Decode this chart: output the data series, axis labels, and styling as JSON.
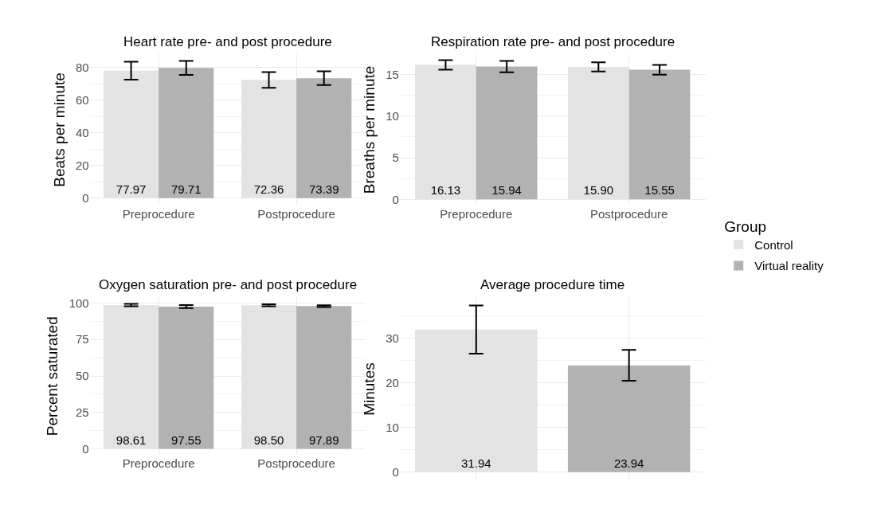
{
  "chart_data": [
    {
      "type": "bar",
      "title": "Heart rate pre- and post procedure",
      "ylabel": "Beats per minute",
      "categories": [
        "Preprocedure",
        "Postprocedure"
      ],
      "series": [
        {
          "name": "Control",
          "color": "#e3e3e3",
          "values": [
            77.97,
            72.36
          ],
          "errors": [
            5.5,
            4.8
          ],
          "value_labels": [
            "77.97",
            "72.36"
          ]
        },
        {
          "name": "Virtual reality",
          "color": "#b2b2b2",
          "values": [
            79.71,
            73.39
          ],
          "errors": [
            4.3,
            4.2
          ],
          "value_labels": [
            "79.71",
            "73.39"
          ]
        }
      ],
      "ylim": [
        -4.4,
        88
      ],
      "yticks": [
        0,
        20,
        40,
        60,
        80
      ],
      "grid": true,
      "legend": "right",
      "legend_title": "Group"
    },
    {
      "type": "bar",
      "title": "Respiration rate pre- and post procedure",
      "ylabel": "Breaths per minute",
      "categories": [
        "Preprocedure",
        "Postprocedure"
      ],
      "series": [
        {
          "color": "#e3e3e3",
          "values": [
            16.13,
            15.9
          ],
          "errors": [
            0.58,
            0.55
          ],
          "value_labels": [
            "16.13",
            "15.90"
          ]
        },
        {
          "color": "#b2b2b2",
          "values": [
            15.94,
            15.55
          ],
          "errors": [
            0.68,
            0.58
          ],
          "value_labels": [
            "15.94",
            "15.55"
          ]
        }
      ],
      "ylim": [
        -0.7,
        17.4
      ],
      "yticks": [
        0,
        5,
        10,
        15
      ],
      "grid": true
    },
    {
      "type": "bar",
      "title": "Oxygen saturation pre- and post procedure",
      "ylabel": "Percent saturated",
      "categories": [
        "Preprocedure",
        "Postprocedure"
      ],
      "series": [
        {
          "color": "#e3e3e3",
          "values": [
            98.61,
            98.5
          ],
          "errors": [
            0.8,
            0.7
          ],
          "value_labels": [
            "98.61",
            "98.50"
          ]
        },
        {
          "color": "#b2b2b2",
          "values": [
            97.55,
            97.89
          ],
          "errors": [
            1.0,
            0.6
          ],
          "value_labels": [
            "97.55",
            "97.89"
          ]
        }
      ],
      "ylim": [
        -4.3,
        104
      ],
      "yticks": [
        0,
        25,
        50,
        75,
        100
      ],
      "grid": true
    },
    {
      "type": "bar",
      "title": "Average procedure time",
      "ylabel": "Minutes",
      "categories": [
        null,
        null
      ],
      "values": [
        31.94,
        23.94
      ],
      "colors": [
        "#e3e3e3",
        "#b2b2b2"
      ],
      "errors": [
        5.4,
        3.45
      ],
      "value_labels": [
        "31.94",
        "23.94"
      ],
      "ylim": [
        -2,
        39.2
      ],
      "yticks": [
        0,
        10,
        20,
        30
      ],
      "grid": true,
      "tick_labels": "y"
    }
  ]
}
